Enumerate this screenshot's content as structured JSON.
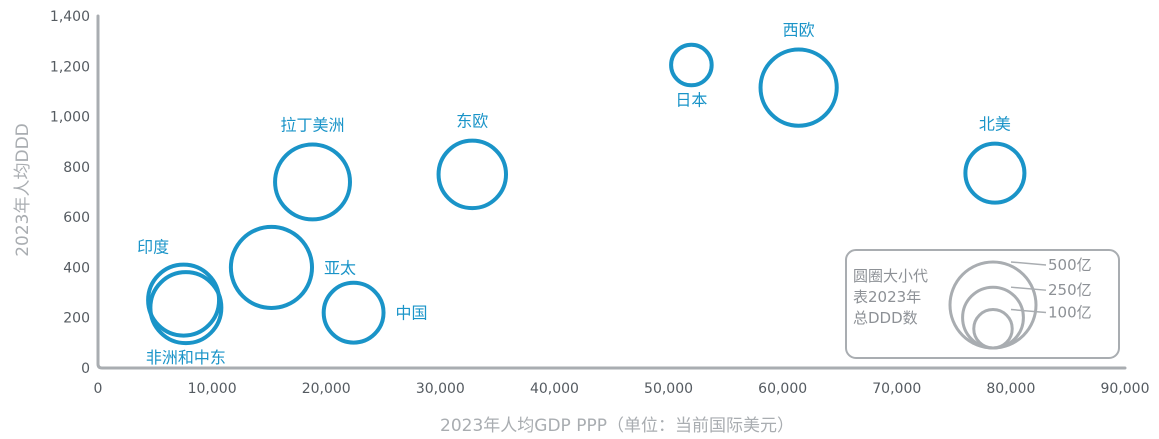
{
  "chart_data": {
    "type": "scatter",
    "xlabel": "2023年人均GDP PPP（单位：当前国际美元）",
    "ylabel": "2023年人均DDD",
    "xlim": [
      0,
      90000
    ],
    "ylim": [
      0,
      1400
    ],
    "x_ticks": [
      "0",
      "10,000",
      "20,000",
      "30,000",
      "40,000",
      "50,000",
      "60,000",
      "70,000",
      "80,000",
      "90,000"
    ],
    "y_ticks": [
      "0",
      "200",
      "400",
      "600",
      "800",
      "1,000",
      "1,200",
      "1,400"
    ],
    "grid": false,
    "colors": {
      "bubble": "#1a94c8",
      "axis": "#a9adb1",
      "legend": "#a9adb1"
    },
    "points": [
      {
        "name": "印度",
        "x": 7500,
        "y": 270,
        "size": 260,
        "label_pos": "top-left"
      },
      {
        "name": "非洲和中东",
        "x": 7700,
        "y": 240,
        "size": 260,
        "label_pos": "bottom"
      },
      {
        "name": "亚太",
        "x": 15200,
        "y": 400,
        "size": 340,
        "label_pos": "right"
      },
      {
        "name": "拉丁美洲",
        "x": 18800,
        "y": 740,
        "size": 290,
        "label_pos": "top"
      },
      {
        "name": "中国",
        "x": 22400,
        "y": 220,
        "size": 185,
        "label_pos": "right"
      },
      {
        "name": "东欧",
        "x": 32800,
        "y": 770,
        "size": 235,
        "label_pos": "top"
      },
      {
        "name": "日本",
        "x": 52000,
        "y": 1205,
        "size": 85,
        "label_pos": "bottom"
      },
      {
        "name": "西欧",
        "x": 61400,
        "y": 1115,
        "size": 300,
        "label_pos": "top"
      },
      {
        "name": "北美",
        "x": 78600,
        "y": 775,
        "size": 180,
        "label_pos": "top"
      }
    ],
    "legend": {
      "title_lines": [
        "圆圈大小代",
        "表2023年",
        "总DDD数"
      ],
      "sizes": [
        {
          "value": 500,
          "label": "500亿"
        },
        {
          "value": 250,
          "label": "250亿"
        },
        {
          "value": 100,
          "label": "100亿"
        }
      ]
    }
  }
}
